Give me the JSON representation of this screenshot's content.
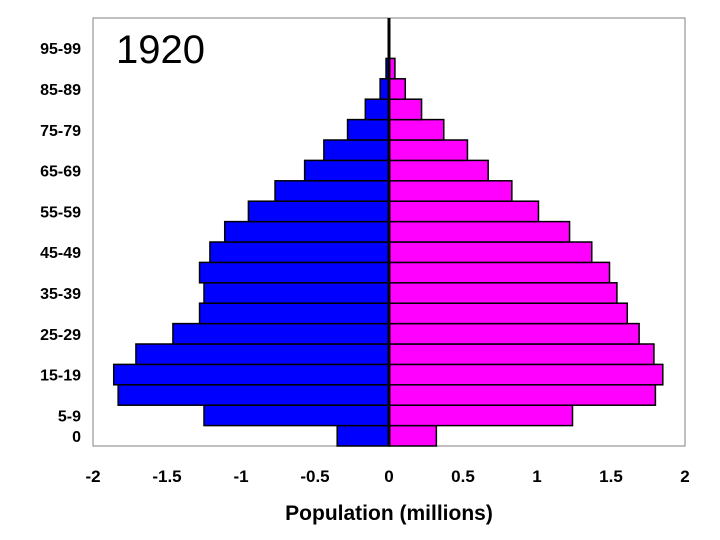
{
  "chart_data": {
    "type": "bar",
    "orientation": "horizontal",
    "stacked_diverging": true,
    "annotation": "1920",
    "xlabel": "Population (millions)",
    "xlim": [
      -2,
      2
    ],
    "xticks": [
      -2,
      -1.5,
      -1,
      -0.5,
      0,
      0.5,
      1,
      1.5,
      2
    ],
    "xtick_labels": [
      "-2",
      "-1.5",
      "-1",
      "-0.5",
      "0",
      "0.5",
      "1",
      "1.5",
      "2"
    ],
    "categories": [
      "0",
      "5-9",
      "10-14",
      "15-19",
      "20-24",
      "25-29",
      "30-34",
      "35-39",
      "40-44",
      "45-49",
      "50-54",
      "55-59",
      "60-64",
      "65-69",
      "70-74",
      "75-79",
      "80-84",
      "85-89",
      "90-94",
      "95-99"
    ],
    "visible_category_labels": [
      "0",
      "5-9",
      "15-19",
      "25-29",
      "35-39",
      "45-49",
      "55-59",
      "65-69",
      "75-79",
      "85-89",
      "95-99"
    ],
    "series": [
      {
        "color": "#0000ff",
        "values": [
          -0.35,
          -1.25,
          -1.83,
          -1.86,
          -1.71,
          -1.46,
          -1.28,
          -1.25,
          -1.28,
          -1.21,
          -1.11,
          -0.95,
          -0.77,
          -0.57,
          -0.44,
          -0.28,
          -0.16,
          -0.06,
          -0.02,
          0
        ]
      },
      {
        "color": "#ff00ff",
        "values": [
          0.32,
          1.24,
          1.8,
          1.85,
          1.79,
          1.69,
          1.61,
          1.54,
          1.49,
          1.37,
          1.22,
          1.01,
          0.83,
          0.67,
          0.53,
          0.37,
          0.22,
          0.11,
          0.04,
          0
        ]
      }
    ],
    "grid": false,
    "legend": "none"
  }
}
